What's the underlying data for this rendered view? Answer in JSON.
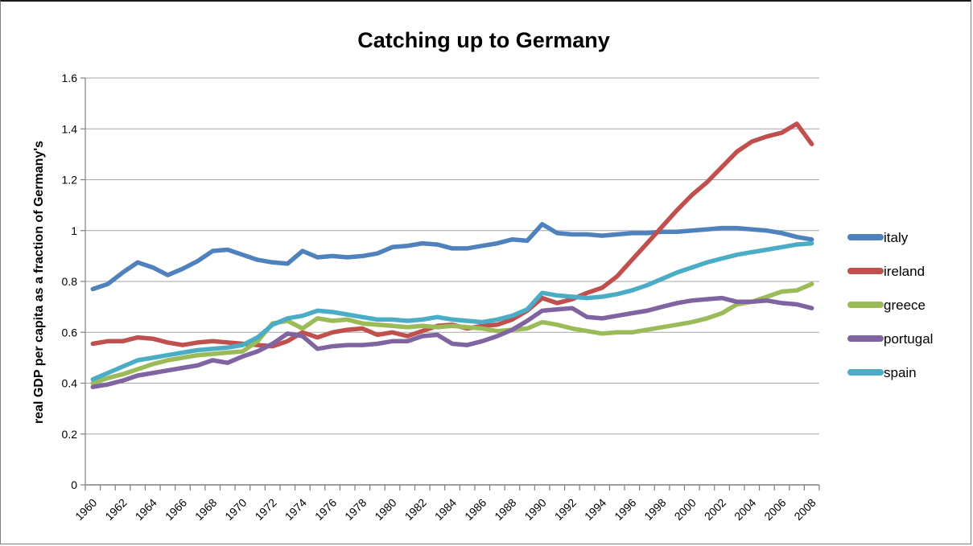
{
  "title": "Catching up to Germany",
  "y_axis": {
    "label": "real GDP per capita as a fraction of Germany's",
    "ticks": [
      "0",
      "0.2",
      "0.4",
      "0.6",
      "0.8",
      "1",
      "1.2",
      "1.4",
      "1.6"
    ],
    "min": 0,
    "max": 1.6
  },
  "x_axis": {
    "tick_labels": [
      "1960",
      "1962",
      "1964",
      "1966",
      "1968",
      "1970",
      "1972",
      "1974",
      "1976",
      "1978",
      "1980",
      "1982",
      "1984",
      "1986",
      "1988",
      "1990",
      "1992",
      "1994",
      "1996",
      "1998",
      "2000",
      "2002",
      "2004",
      "2006",
      "2008"
    ]
  },
  "colors": {
    "grid": "#A6A6A6",
    "axis": "#808080",
    "text": "#000000"
  },
  "chart_data": {
    "type": "line",
    "title": "Catching up to Germany",
    "ylabel": "real GDP per capita as a fraction of Germany's",
    "xlabel": "",
    "ylim": [
      0,
      1.6
    ],
    "grid": true,
    "legend_position": "right",
    "x": [
      1960,
      1961,
      1962,
      1963,
      1964,
      1965,
      1966,
      1967,
      1968,
      1969,
      1970,
      1971,
      1972,
      1973,
      1974,
      1975,
      1976,
      1977,
      1978,
      1979,
      1980,
      1981,
      1982,
      1983,
      1984,
      1985,
      1986,
      1987,
      1988,
      1989,
      1990,
      1991,
      1992,
      1993,
      1994,
      1995,
      1996,
      1997,
      1998,
      1999,
      2000,
      2001,
      2002,
      2003,
      2004,
      2005,
      2006,
      2007,
      2008
    ],
    "series": [
      {
        "name": "italy",
        "color": "#4F81BD",
        "values": [
          0.77,
          0.79,
          0.835,
          0.875,
          0.855,
          0.825,
          0.85,
          0.88,
          0.92,
          0.925,
          0.905,
          0.885,
          0.875,
          0.87,
          0.92,
          0.895,
          0.9,
          0.895,
          0.9,
          0.91,
          0.935,
          0.94,
          0.95,
          0.945,
          0.93,
          0.93,
          0.94,
          0.95,
          0.965,
          0.96,
          1.025,
          0.99,
          0.985,
          0.985,
          0.98,
          0.985,
          0.99,
          0.99,
          0.995,
          0.995,
          1.0,
          1.005,
          1.01,
          1.01,
          1.005,
          1.0,
          0.99,
          0.975,
          0.965
        ]
      },
      {
        "name": "ireland",
        "color": "#C0504D",
        "values": [
          0.555,
          0.565,
          0.565,
          0.58,
          0.575,
          0.56,
          0.55,
          0.56,
          0.565,
          0.56,
          0.555,
          0.55,
          0.545,
          0.565,
          0.6,
          0.58,
          0.6,
          0.61,
          0.615,
          0.59,
          0.6,
          0.585,
          0.605,
          0.625,
          0.63,
          0.615,
          0.625,
          0.63,
          0.65,
          0.685,
          0.735,
          0.715,
          0.73,
          0.755,
          0.775,
          0.82,
          0.885,
          0.95,
          1.015,
          1.08,
          1.14,
          1.19,
          1.25,
          1.31,
          1.35,
          1.37,
          1.385,
          1.42,
          1.34
        ]
      },
      {
        "name": "greece",
        "color": "#9BBB59",
        "values": [
          0.4,
          0.42,
          0.435,
          0.455,
          0.475,
          0.49,
          0.5,
          0.51,
          0.515,
          0.52,
          0.525,
          0.565,
          0.635,
          0.645,
          0.615,
          0.655,
          0.645,
          0.65,
          0.635,
          0.63,
          0.625,
          0.62,
          0.625,
          0.62,
          0.625,
          0.62,
          0.615,
          0.605,
          0.61,
          0.615,
          0.64,
          0.63,
          0.615,
          0.605,
          0.595,
          0.6,
          0.6,
          0.61,
          0.62,
          0.63,
          0.64,
          0.655,
          0.675,
          0.71,
          0.72,
          0.74,
          0.76,
          0.765,
          0.79
        ]
      },
      {
        "name": "portugal",
        "color": "#8064A2",
        "values": [
          0.385,
          0.395,
          0.41,
          0.43,
          0.44,
          0.45,
          0.46,
          0.47,
          0.49,
          0.48,
          0.505,
          0.525,
          0.555,
          0.595,
          0.585,
          0.535,
          0.545,
          0.55,
          0.55,
          0.555,
          0.565,
          0.565,
          0.585,
          0.59,
          0.555,
          0.55,
          0.565,
          0.585,
          0.61,
          0.645,
          0.685,
          0.69,
          0.695,
          0.66,
          0.655,
          0.665,
          0.675,
          0.685,
          0.7,
          0.715,
          0.725,
          0.73,
          0.735,
          0.72,
          0.72,
          0.725,
          0.715,
          0.71,
          0.695
        ]
      },
      {
        "name": "spain",
        "color": "#4BACC6",
        "values": [
          0.415,
          0.44,
          0.465,
          0.49,
          0.5,
          0.51,
          0.52,
          0.53,
          0.535,
          0.54,
          0.55,
          0.58,
          0.63,
          0.655,
          0.665,
          0.685,
          0.68,
          0.67,
          0.66,
          0.65,
          0.65,
          0.645,
          0.65,
          0.66,
          0.65,
          0.645,
          0.64,
          0.65,
          0.665,
          0.69,
          0.755,
          0.745,
          0.74,
          0.735,
          0.74,
          0.75,
          0.765,
          0.785,
          0.81,
          0.835,
          0.855,
          0.875,
          0.89,
          0.905,
          0.915,
          0.925,
          0.935,
          0.945,
          0.95
        ]
      }
    ]
  }
}
